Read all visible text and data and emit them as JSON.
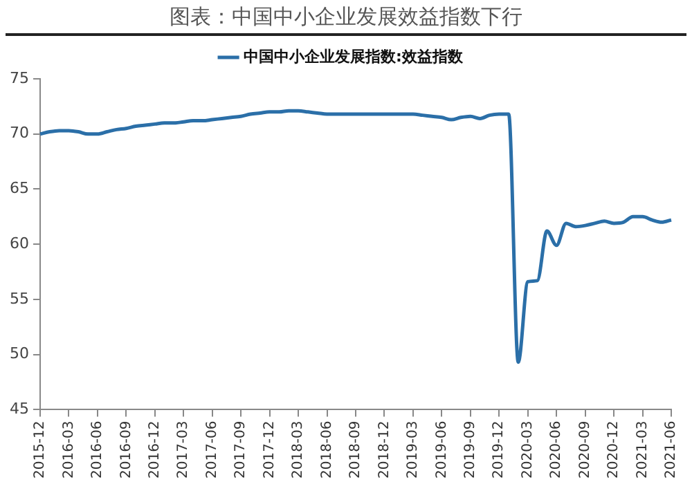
{
  "chart_data": {
    "type": "line",
    "title": "图表：中国中小企业发展效益指数下行",
    "categories": [
      "2015-12",
      null,
      null,
      "2016-03",
      null,
      null,
      "2016-06",
      null,
      null,
      "2016-09",
      null,
      null,
      "2016-12",
      null,
      null,
      "2017-03",
      null,
      null,
      "2017-06",
      null,
      null,
      "2017-09",
      null,
      null,
      "2017-12",
      null,
      null,
      "2018-03",
      null,
      null,
      "2018-06",
      null,
      null,
      "2018-09",
      null,
      null,
      "2018-12",
      null,
      null,
      "2019-03",
      null,
      null,
      "2019-06",
      null,
      null,
      "2019-09",
      null,
      null,
      "2019-12",
      null,
      null,
      "2020-03",
      null,
      null,
      "2020-06",
      null,
      null,
      "2020-09",
      null,
      null,
      "2020-12",
      null,
      null,
      "2021-03",
      null,
      null,
      "2021-06"
    ],
    "series": [
      {
        "name": "中国中小企业发展指数:效益指数",
        "color": "#2b6fa8",
        "values": [
          70.0,
          70.2,
          70.3,
          70.3,
          70.2,
          70.0,
          70.0,
          70.2,
          70.4,
          70.5,
          70.7,
          70.8,
          70.9,
          71.0,
          71.0,
          71.1,
          71.2,
          71.2,
          71.3,
          71.4,
          71.5,
          71.6,
          71.8,
          71.9,
          72.0,
          72.0,
          72.1,
          72.1,
          72.0,
          71.9,
          71.8,
          71.8,
          71.8,
          71.8,
          71.8,
          71.8,
          71.8,
          71.8,
          71.8,
          71.8,
          71.7,
          71.6,
          71.5,
          71.3,
          71.5,
          71.6,
          71.4,
          71.7,
          71.8,
          71.8,
          49.3,
          56.6,
          56.7,
          61.2,
          59.9,
          61.9,
          61.6,
          61.7,
          61.9,
          62.1,
          61.9,
          62.0,
          62.5,
          62.5,
          62.2,
          62.0,
          62.2
        ]
      }
    ],
    "ylim": [
      45,
      75
    ],
    "yticks": [
      45,
      50,
      55,
      60,
      65,
      70,
      75
    ],
    "grid": false,
    "legend": "top",
    "marker": "none",
    "line_style": "solid"
  }
}
